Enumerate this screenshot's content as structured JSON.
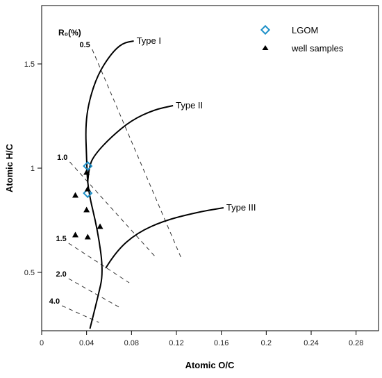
{
  "chart_data": {
    "type": "scatter",
    "title": "",
    "xlabel": "Atomic O/C",
    "ylabel": "Atomic H/C",
    "xlim": [
      0,
      0.3
    ],
    "ylim": [
      0.22,
      1.78
    ],
    "x_ticks": [
      "0",
      "0.04",
      "0.08",
      "0.12",
      "0.16",
      "0.2",
      "0.24",
      "0.28"
    ],
    "y_ticks": [
      "0.5",
      "1",
      "1.5"
    ],
    "ro_label": "R₀(%)",
    "series": [
      {
        "name": "LGOM",
        "marker": "diamond-open",
        "color": "#1e90c8",
        "points": [
          [
            0.041,
            1.01
          ],
          [
            0.041,
            0.88
          ]
        ]
      },
      {
        "name": "well samples",
        "marker": "triangle-filled",
        "color": "#000000",
        "points": [
          [
            0.04,
            0.98
          ],
          [
            0.041,
            0.9
          ],
          [
            0.04,
            0.8
          ],
          [
            0.03,
            0.87
          ],
          [
            0.052,
            0.72
          ],
          [
            0.03,
            0.68
          ],
          [
            0.041,
            0.67
          ]
        ]
      }
    ],
    "type_curves": [
      {
        "name": "Type I",
        "points": [
          [
            0.043,
            0.23
          ],
          [
            0.05,
            0.38
          ],
          [
            0.055,
            0.5
          ],
          [
            0.05,
            0.7
          ],
          [
            0.041,
            0.9
          ],
          [
            0.04,
            1.05
          ],
          [
            0.039,
            1.2
          ],
          [
            0.042,
            1.32
          ],
          [
            0.05,
            1.45
          ],
          [
            0.062,
            1.55
          ],
          [
            0.072,
            1.6
          ],
          [
            0.082,
            1.61
          ]
        ]
      },
      {
        "name": "Type II",
        "points": [
          [
            0.041,
            0.93
          ],
          [
            0.042,
            1.01
          ],
          [
            0.048,
            1.07
          ],
          [
            0.062,
            1.15
          ],
          [
            0.08,
            1.23
          ],
          [
            0.1,
            1.28
          ],
          [
            0.117,
            1.3
          ]
        ]
      },
      {
        "name": "Type III",
        "points": [
          [
            0.057,
            0.52
          ],
          [
            0.066,
            0.6
          ],
          [
            0.085,
            0.69
          ],
          [
            0.11,
            0.75
          ],
          [
            0.14,
            0.79
          ],
          [
            0.162,
            0.81
          ]
        ]
      }
    ],
    "ro_lines": [
      {
        "label": "0.5",
        "from": [
          0.045,
          1.57
        ],
        "to": [
          0.125,
          0.56
        ]
      },
      {
        "label": "1.0",
        "from": [
          0.025,
          1.03
        ],
        "to": [
          0.102,
          0.57
        ]
      },
      {
        "label": "1.5",
        "from": [
          0.024,
          0.64
        ],
        "to": [
          0.078,
          0.45
        ]
      },
      {
        "label": "2.0",
        "from": [
          0.024,
          0.47
        ],
        "to": [
          0.07,
          0.33
        ]
      },
      {
        "label": "4.0",
        "from": [
          0.018,
          0.34
        ],
        "to": [
          0.051,
          0.26
        ]
      }
    ],
    "legend_position": "top-right",
    "grid": false
  }
}
